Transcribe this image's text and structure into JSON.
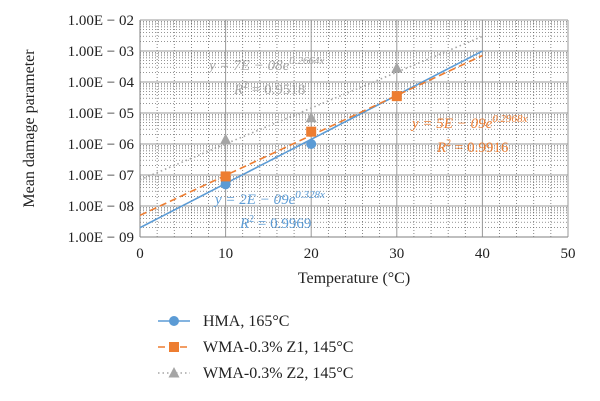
{
  "chart_data": {
    "type": "scatter",
    "xlabel": "Temperature (°C)",
    "ylabel": "Mean damage parameter",
    "xlim": [
      0,
      50
    ],
    "ylim_log10": [
      -9,
      -2
    ],
    "y_scale": "log",
    "x_ticks": [
      "0",
      "10",
      "20",
      "30",
      "40",
      "50"
    ],
    "y_ticks": [
      "1.00E − 09",
      "1.00E − 08",
      "1.00E − 07",
      "1.00E − 06",
      "1.00E − 05",
      "1.00E − 04",
      "1.00E − 03",
      "1.00E − 02"
    ],
    "grid": true,
    "legend_position": "bottom",
    "series": [
      {
        "name": "HMA, 165°C",
        "color": "#5b9bd5",
        "marker": "circle",
        "line": "solid",
        "x": [
          10,
          20,
          30
        ],
        "y": [
          5e-08,
          1e-06,
          3.5e-05
        ],
        "trendline": {
          "a": 2e-09,
          "b": 0.328,
          "x_range": [
            0,
            40
          ]
        },
        "equation": {
          "main": "y = 2E − 09e",
          "exp": "0.328x",
          "r2": "= 0.9969"
        }
      },
      {
        "name": "WMA-0.3% Z1, 145°C",
        "color": "#ed7d31",
        "marker": "square",
        "line": "dashed",
        "x": [
          10,
          20,
          30
        ],
        "y": [
          9e-08,
          2.5e-06,
          3.5e-05
        ],
        "trendline": {
          "a": 5e-09,
          "b": 0.2968,
          "x_range": [
            0,
            40
          ]
        },
        "equation": {
          "main": "y = 5E − 09e",
          "exp": "0.2968x",
          "r2": "= 0.9916"
        }
      },
      {
        "name": "WMA-0.3% Z2, 145°C",
        "color": "#a5a5a5",
        "marker": "triangle",
        "line": "dotted",
        "x": [
          10,
          20,
          30
        ],
        "y": [
          1.4e-06,
          7e-06,
          0.00028
        ],
        "trendline": {
          "a": 7e-08,
          "b": 0.2664,
          "x_range": [
            0,
            40
          ]
        },
        "equation": {
          "main": "y = 7E − 08e",
          "exp": "0.2664x",
          "r2": "= 0.9518"
        }
      }
    ]
  }
}
